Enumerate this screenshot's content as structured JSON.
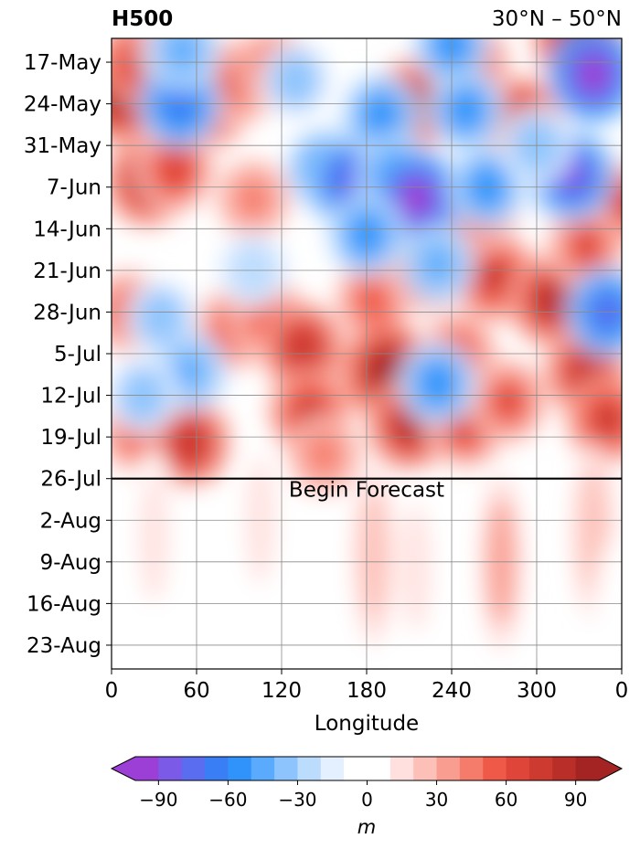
{
  "chart_data": {
    "type": "heatmap",
    "title_left": "H500",
    "title_right": "30°N – 50°N",
    "xlabel": "Longitude",
    "x_ticks": [
      "0",
      "60",
      "120",
      "180",
      "240",
      "300",
      "0"
    ],
    "x_tick_values": [
      0,
      60,
      120,
      180,
      240,
      300,
      360
    ],
    "xlim": [
      0,
      360
    ],
    "y_ticks": [
      "17-May",
      "24-May",
      "31-May",
      "7-Jun",
      "14-Jun",
      "21-Jun",
      "28-Jun",
      "5-Jul",
      "12-Jul",
      "19-Jul",
      "26-Jul",
      "2-Aug",
      "9-Aug",
      "16-Aug",
      "23-Aug"
    ],
    "ylim": [
      "13-May",
      "27-Aug"
    ],
    "y_inverted": true,
    "grid": true,
    "forecast_line": {
      "date": "26-Jul",
      "label": "Begin Forecast"
    },
    "colorbar": {
      "label": "m",
      "ticks": [
        "−90",
        "−60",
        "−30",
        "0",
        "30",
        "60",
        "90"
      ],
      "tick_values": [
        -90,
        -60,
        -30,
        0,
        30,
        60,
        90
      ],
      "range": [
        -100,
        100
      ],
      "extend": "both",
      "colors": [
        "#9c3fd6",
        "#7a5ae6",
        "#5a6df0",
        "#3a7ef6",
        "#2f93fb",
        "#5aabfd",
        "#8dc4fd",
        "#bcdcfe",
        "#e4f0ff",
        "#ffffff",
        "#ffffff",
        "#ffe0de",
        "#fdc0b8",
        "#f99d90",
        "#f57b6a",
        "#ef5a48",
        "#df4538",
        "#cc3a30",
        "#b92e28",
        "#a32422"
      ]
    },
    "anomalies": [
      {
        "lon": 5,
        "date": "22-May",
        "value": 95
      },
      {
        "lon": 20,
        "date": "17-May",
        "value": 70
      },
      {
        "lon": 45,
        "date": "15-May",
        "value": 60
      },
      {
        "lon": 25,
        "date": "6-Jun",
        "value": 80
      },
      {
        "lon": 45,
        "date": "4-Jun",
        "value": 65
      },
      {
        "lon": 12,
        "date": "28-Jun",
        "value": 55
      },
      {
        "lon": 18,
        "date": "18-Jul",
        "value": 55
      },
      {
        "lon": 55,
        "date": "20-Jul",
        "value": 75
      },
      {
        "lon": 70,
        "date": "25-May",
        "value": 55
      },
      {
        "lon": 92,
        "date": "20-May",
        "value": 60
      },
      {
        "lon": 100,
        "date": "9-Jun",
        "value": 45
      },
      {
        "lon": 85,
        "date": "1-Jul",
        "value": 50
      },
      {
        "lon": 110,
        "date": "29-Jun",
        "value": 55
      },
      {
        "lon": 135,
        "date": "4-Jul",
        "value": 75
      },
      {
        "lon": 140,
        "date": "15-Jul",
        "value": 70
      },
      {
        "lon": 115,
        "date": "18-May",
        "value": 55
      },
      {
        "lon": 150,
        "date": "22-Jul",
        "value": 45
      },
      {
        "lon": 185,
        "date": "26-Jun",
        "value": 55
      },
      {
        "lon": 195,
        "date": "8-Jul",
        "value": 95
      },
      {
        "lon": 210,
        "date": "17-Jul",
        "value": 80
      },
      {
        "lon": 215,
        "date": "24-May",
        "value": 80
      },
      {
        "lon": 250,
        "date": "17-May",
        "value": 70
      },
      {
        "lon": 222,
        "date": "21-Jun",
        "value": 65
      },
      {
        "lon": 245,
        "date": "5-Jul",
        "value": 55
      },
      {
        "lon": 250,
        "date": "17-Jul",
        "value": 65
      },
      {
        "lon": 270,
        "date": "22-Jun",
        "value": 70
      },
      {
        "lon": 280,
        "date": "13-Jul",
        "value": 60
      },
      {
        "lon": 260,
        "date": "11-Jun",
        "value": 55
      },
      {
        "lon": 290,
        "date": "27-May",
        "value": 75
      },
      {
        "lon": 330,
        "date": "13-May",
        "value": 90
      },
      {
        "lon": 310,
        "date": "26-Jun",
        "value": 80
      },
      {
        "lon": 335,
        "date": "8-Jul",
        "value": 75
      },
      {
        "lon": 350,
        "date": "16-Jul",
        "value": 70
      },
      {
        "lon": 358,
        "date": "10-Jun",
        "value": 65
      },
      {
        "lon": 335,
        "date": "17-Jun",
        "value": 60
      },
      {
        "lon": 48,
        "date": "24-May",
        "value": -70
      },
      {
        "lon": 50,
        "date": "15-May",
        "value": -50
      },
      {
        "lon": 35,
        "date": "29-Jun",
        "value": -40
      },
      {
        "lon": 55,
        "date": "8-Jul",
        "value": -45
      },
      {
        "lon": 22,
        "date": "12-Jul",
        "value": -40
      },
      {
        "lon": 150,
        "date": "4-Jun",
        "value": -55
      },
      {
        "lon": 168,
        "date": "6-Jun",
        "value": -80
      },
      {
        "lon": 190,
        "date": "26-May",
        "value": -60
      },
      {
        "lon": 200,
        "date": "5-Jun",
        "value": -55
      },
      {
        "lon": 215,
        "date": "9-Jun",
        "value": -95
      },
      {
        "lon": 180,
        "date": "15-Jun",
        "value": -55
      },
      {
        "lon": 265,
        "date": "7-Jun",
        "value": -55
      },
      {
        "lon": 250,
        "date": "25-May",
        "value": -55
      },
      {
        "lon": 240,
        "date": "14-May",
        "value": -55
      },
      {
        "lon": 325,
        "date": "5-Jun",
        "value": -85
      },
      {
        "lon": 340,
        "date": "19-May",
        "value": -95
      },
      {
        "lon": 350,
        "date": "28-Jun",
        "value": -75
      },
      {
        "lon": 100,
        "date": "21-Jun",
        "value": -35
      },
      {
        "lon": 230,
        "date": "20-Jun",
        "value": -45
      },
      {
        "lon": 230,
        "date": "10-Jul",
        "value": -60
      },
      {
        "lon": 130,
        "date": "20-May",
        "value": -40
      },
      {
        "lon": 300,
        "date": "31-May",
        "value": -40
      },
      {
        "lon": 30,
        "date": "5-Aug",
        "value": 15
      },
      {
        "lon": 105,
        "date": "2-Aug",
        "value": 15
      },
      {
        "lon": 185,
        "date": "8-Aug",
        "value": 25
      },
      {
        "lon": 215,
        "date": "10-Aug",
        "value": 15
      },
      {
        "lon": 275,
        "date": "9-Aug",
        "value": 40
      },
      {
        "lon": 340,
        "date": "4-Aug",
        "value": 30
      },
      {
        "lon": 60,
        "date": "12-Aug",
        "value": 12
      },
      {
        "lon": 150,
        "date": "15-Aug",
        "value": 12
      },
      {
        "lon": 355,
        "date": "20-Aug",
        "value": 12
      }
    ]
  }
}
